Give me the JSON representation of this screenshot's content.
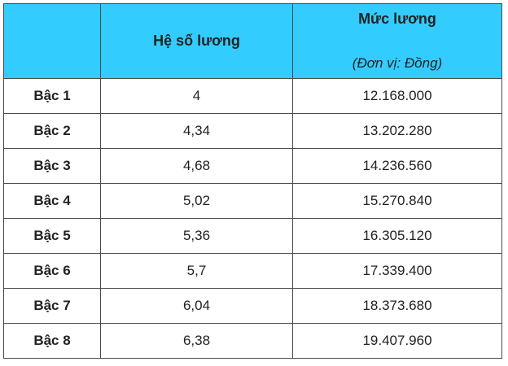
{
  "table": {
    "headers": {
      "level": "",
      "coefficient": "Hệ số lương",
      "salary": "Mức lương",
      "salary_unit": "(Đơn vị: Đồng)"
    },
    "rows": [
      {
        "level": "Bậc 1",
        "coefficient": "4",
        "salary": "12.168.000"
      },
      {
        "level": "Bậc 2",
        "coefficient": "4,34",
        "salary": "13.202.280"
      },
      {
        "level": "Bậc 3",
        "coefficient": "4,68",
        "salary": "14.236.560"
      },
      {
        "level": "Bậc 4",
        "coefficient": "5,02",
        "salary": "15.270.840"
      },
      {
        "level": "Bậc 5",
        "coefficient": "5,36",
        "salary": "16.305.120"
      },
      {
        "level": "Bậc 6",
        "coefficient": "5,7",
        "salary": "17.339.400"
      },
      {
        "level": "Bậc 7",
        "coefficient": "6,04",
        "salary": "18.373.680"
      },
      {
        "level": "Bậc 8",
        "coefficient": "6,38",
        "salary": "19.407.960"
      }
    ]
  },
  "colors": {
    "header_background": "#33ccff",
    "border": "#4a4a4a",
    "text": "#222222"
  }
}
